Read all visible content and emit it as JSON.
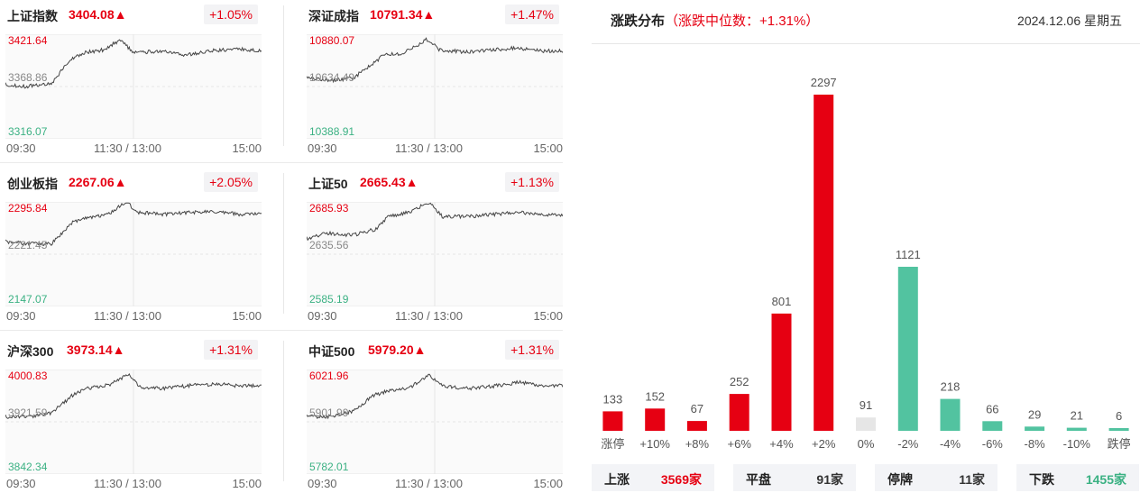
{
  "indices": [
    {
      "name": "上证指数",
      "value": "3404.08▲",
      "change": "+1.05%",
      "high": "3421.64",
      "mid": "3368.86",
      "low": "3316.07",
      "color": "#e60012"
    },
    {
      "name": "深证成指",
      "value": "10791.34▲",
      "change": "+1.47%",
      "high": "10880.07",
      "mid": "10634.49",
      "low": "10388.91",
      "color": "#e60012"
    },
    {
      "name": "创业板指",
      "value": "2267.06▲",
      "change": "+2.05%",
      "high": "2295.84",
      "mid": "2221.45",
      "low": "2147.07",
      "color": "#e60012"
    },
    {
      "name": "上证50",
      "value": "2665.43▲",
      "change": "+1.13%",
      "high": "2685.93",
      "mid": "2635.56",
      "low": "2585.19",
      "color": "#e60012"
    },
    {
      "name": "沪深300",
      "value": "3973.14▲",
      "change": "+1.31%",
      "high": "4000.83",
      "mid": "3921.59",
      "low": "3842.34",
      "color": "#e60012"
    },
    {
      "name": "中证500",
      "value": "5979.20▲",
      "change": "+1.31%",
      "high": "6021.96",
      "mid": "5901.99",
      "low": "5782.01",
      "color": "#e60012"
    }
  ],
  "time_axis": {
    "start": "09:30",
    "middle": "11:30 / 13:00",
    "end": "15:00"
  },
  "distribution": {
    "title": "涨跌分布",
    "subtitle": "（涨跌中位数：+1.31%）",
    "date": "2024.12.06 星期五"
  },
  "chart_data": {
    "type": "bar",
    "title": "涨跌分布",
    "categories": [
      "涨停",
      "+10%",
      "+8%",
      "+6%",
      "+4%",
      "+2%",
      "0%",
      "-2%",
      "-4%",
      "-6%",
      "-8%",
      "-10%",
      "跌停"
    ],
    "values": [
      133,
      152,
      67,
      252,
      801,
      2297,
      91,
      1121,
      218,
      66,
      29,
      21,
      6
    ],
    "bar_colors": [
      "#e60012",
      "#e60012",
      "#e60012",
      "#e60012",
      "#e60012",
      "#e60012",
      "#e6e6e6",
      "#52c3a0",
      "#52c3a0",
      "#52c3a0",
      "#52c3a0",
      "#52c3a0",
      "#52c3a0"
    ],
    "ylim": [
      0,
      2297
    ],
    "grid": false
  },
  "summary": [
    {
      "label": "上涨",
      "value": "3569家",
      "color": "#e60012"
    },
    {
      "label": "平盘",
      "value": "91家",
      "color": "#333333"
    },
    {
      "label": "停牌",
      "value": "11家",
      "color": "#333333"
    },
    {
      "label": "下跌",
      "value": "1455家",
      "color": "#3bb183"
    }
  ]
}
